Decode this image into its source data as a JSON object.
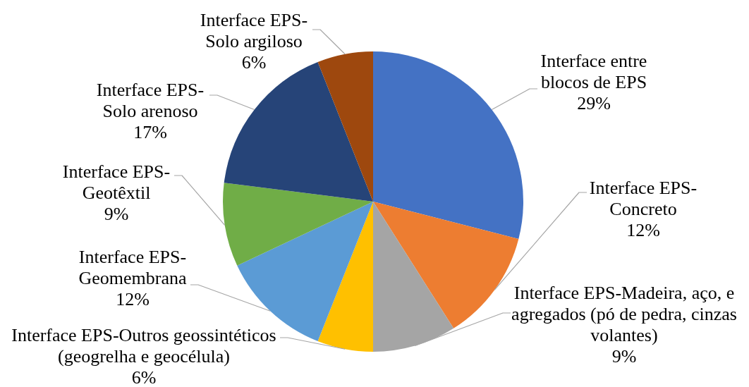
{
  "chart_data": {
    "type": "pie",
    "categories": [
      "Interface entre blocos de EPS",
      "Interface EPS-Concreto",
      "Interface EPS-Madeira, aço, e agregados (pó de pedra, cinzas volantes)",
      "Interface EPS-Outros geossintéticos (geogrelha e geocélula)",
      "Interface EPS-Geomembrana",
      "Interface EPS-Geotêxtil",
      "Interface EPS-Solo arenoso",
      "Interface EPS-Solo argiloso"
    ],
    "values": [
      29,
      12,
      9,
      6,
      12,
      9,
      17,
      6
    ],
    "colors": [
      "#4472c4",
      "#ed7d31",
      "#a5a5a5",
      "#ffc000",
      "#5b9bd5",
      "#70ad47",
      "#264478",
      "#9e480e"
    ],
    "value_labels": [
      "29%",
      "12%",
      "9%",
      "6%",
      "12%",
      "9%",
      "17%",
      "6%"
    ]
  }
}
